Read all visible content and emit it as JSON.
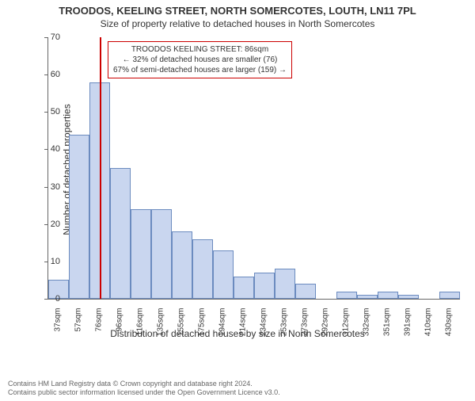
{
  "title_main": "TROODOS, KEELING STREET, NORTH SOMERCOTES, LOUTH, LN11 7PL",
  "title_sub": "Size of property relative to detached houses in North Somercotes",
  "y_axis_label": "Number of detached properties",
  "x_axis_label": "Distribution of detached houses by size in North Somercotes",
  "chart": {
    "type": "histogram",
    "ylim": [
      0,
      70
    ],
    "ytick_step": 10,
    "categories": [
      "37sqm",
      "57sqm",
      "76sqm",
      "96sqm",
      "116sqm",
      "135sqm",
      "155sqm",
      "175sqm",
      "194sqm",
      "214sqm",
      "234sqm",
      "253sqm",
      "273sqm",
      "292sqm",
      "312sqm",
      "332sqm",
      "351sqm",
      "391sqm",
      "410sqm",
      "430sqm"
    ],
    "values": [
      5,
      44,
      58,
      35,
      24,
      24,
      18,
      16,
      13,
      6,
      7,
      8,
      4,
      0,
      2,
      1,
      2,
      1,
      0,
      2
    ],
    "bar_fill": "#c9d6ef",
    "bar_border": "#6b8bbf",
    "reference_line_color": "#cc0000",
    "reference_line_after_index": 2,
    "background": "#ffffff",
    "axis_color": "#666666",
    "tick_fontsize": 10,
    "label_fontsize": 12
  },
  "annotation": {
    "border_color": "#cc0000",
    "line1": "TROODOS KEELING STREET: 86sqm",
    "line2": "← 32% of detached houses are smaller (76)",
    "line3": "67% of semi-detached houses are larger (159) →"
  },
  "footer": {
    "line1": "Contains HM Land Registry data © Crown copyright and database right 2024.",
    "line2": "Contains public sector information licensed under the Open Government Licence v3.0."
  }
}
